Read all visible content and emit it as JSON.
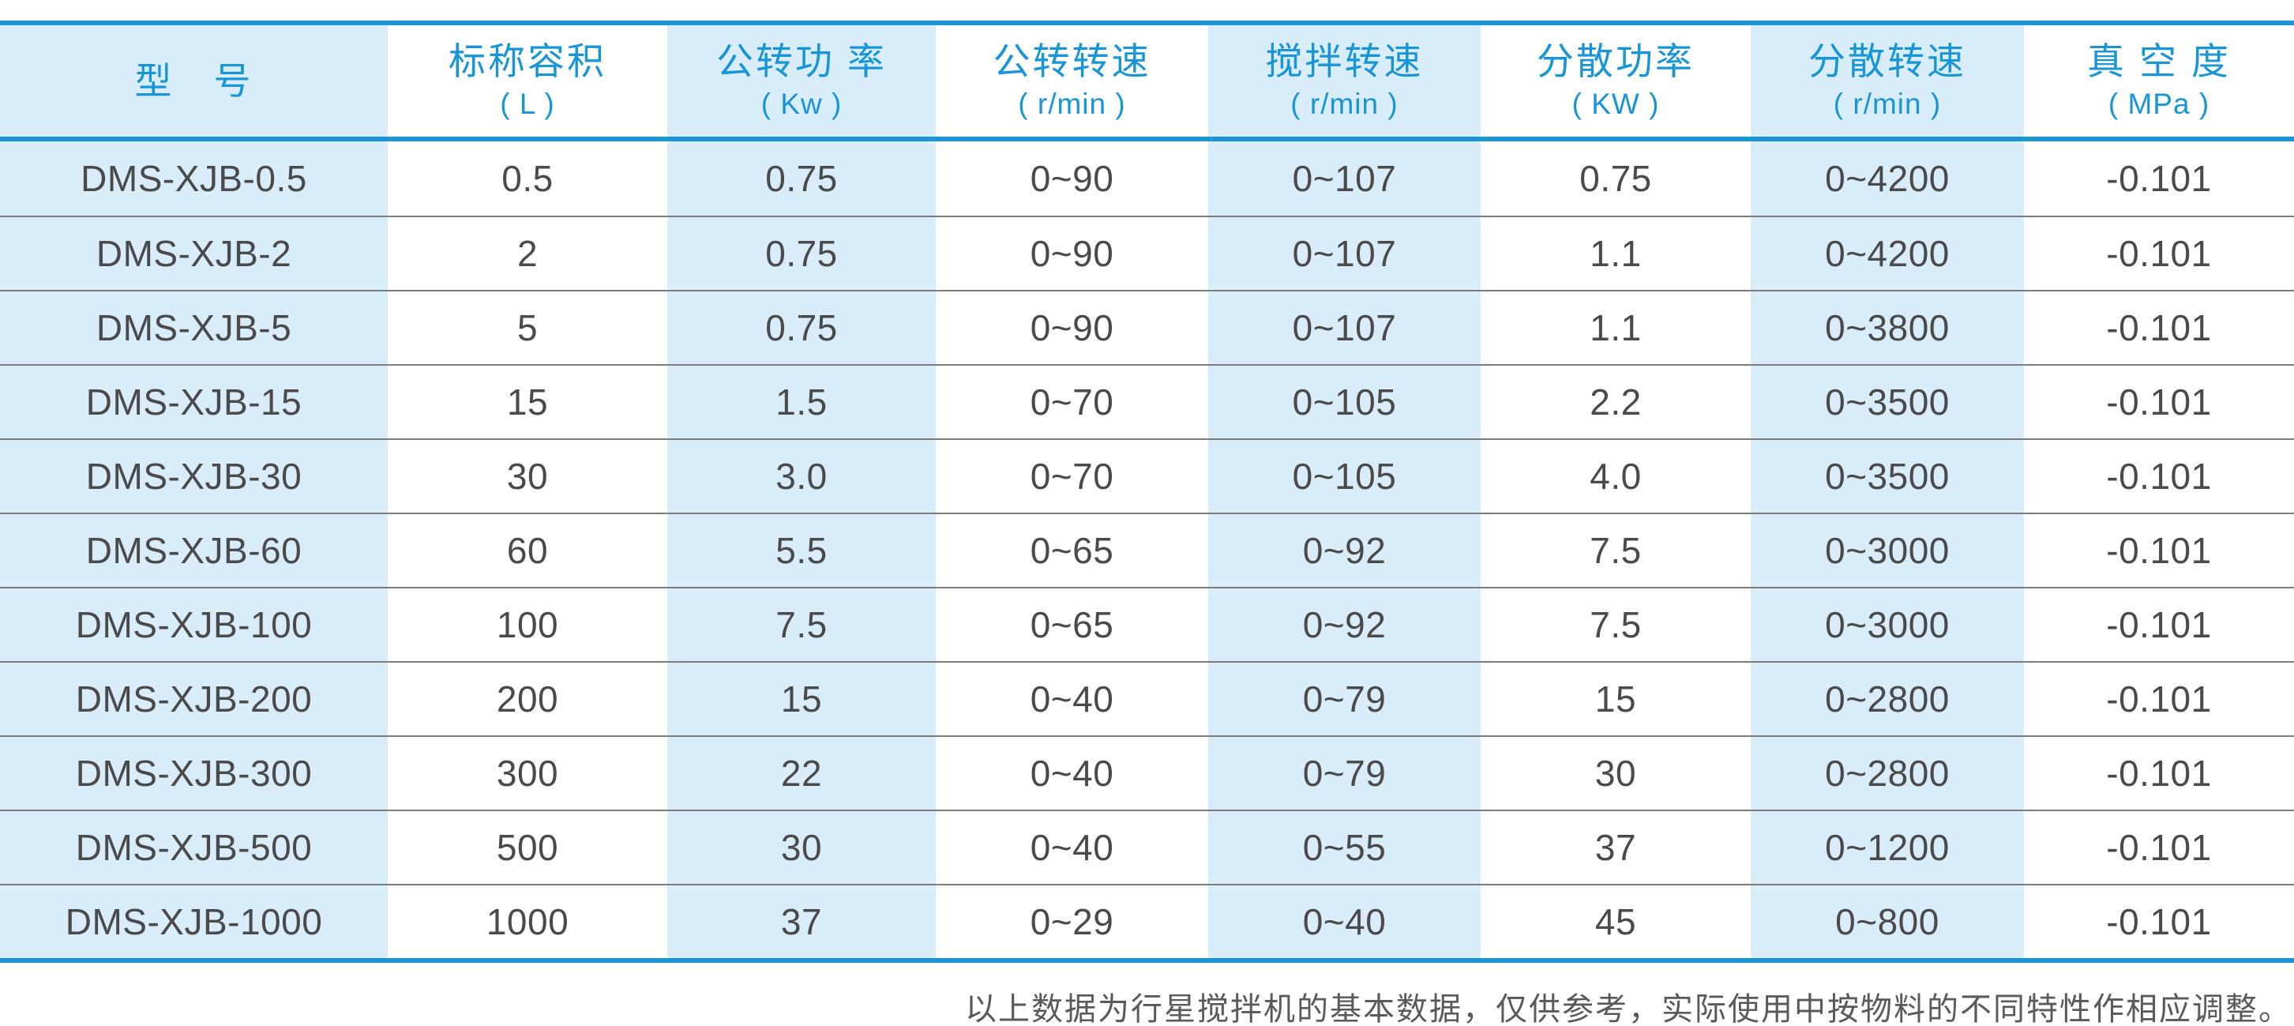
{
  "colors": {
    "accent_blue": "#1795d6",
    "band_blue": "#d9ecfa",
    "text_dark": "#4a4a4a",
    "row_rule_gray": "#7c7c7c",
    "footnote_gray": "#5a5a5a"
  },
  "table": {
    "columns": [
      {
        "title": "型　号",
        "unit": ""
      },
      {
        "title": "标称容积",
        "unit": "( L )"
      },
      {
        "title": "公转功 率",
        "unit": "( Kw )"
      },
      {
        "title": "公转转速",
        "unit": "( r/min )"
      },
      {
        "title": "搅拌转速",
        "unit": "( r/min )"
      },
      {
        "title": "分散功率",
        "unit": "( KW )"
      },
      {
        "title": "分散转速",
        "unit": "( r/min )"
      },
      {
        "title": "真 空 度",
        "unit": "( MPa )"
      }
    ],
    "rows": [
      [
        "DMS-XJB-0.5",
        "0.5",
        "0.75",
        "0~90",
        "0~107",
        "0.75",
        "0~4200",
        "-0.101"
      ],
      [
        "DMS-XJB-2",
        "2",
        "0.75",
        "0~90",
        "0~107",
        "1.1",
        "0~4200",
        "-0.101"
      ],
      [
        "DMS-XJB-5",
        "5",
        "0.75",
        "0~90",
        "0~107",
        "1.1",
        "0~3800",
        "-0.101"
      ],
      [
        "DMS-XJB-15",
        "15",
        "1.5",
        "0~70",
        "0~105",
        "2.2",
        "0~3500",
        "-0.101"
      ],
      [
        "DMS-XJB-30",
        "30",
        "3.0",
        "0~70",
        "0~105",
        "4.0",
        "0~3500",
        "-0.101"
      ],
      [
        "DMS-XJB-60",
        "60",
        "5.5",
        "0~65",
        "0~92",
        "7.5",
        "0~3000",
        "-0.101"
      ],
      [
        "DMS-XJB-100",
        "100",
        "7.5",
        "0~65",
        "0~92",
        "7.5",
        "0~3000",
        "-0.101"
      ],
      [
        "DMS-XJB-200",
        "200",
        "15",
        "0~40",
        "0~79",
        "15",
        "0~2800",
        "-0.101"
      ],
      [
        "DMS-XJB-300",
        "300",
        "22",
        "0~40",
        "0~79",
        "30",
        "0~2800",
        "-0.101"
      ],
      [
        "DMS-XJB-500",
        "500",
        "30",
        "0~40",
        "0~55",
        "37",
        "0~1200",
        "-0.101"
      ],
      [
        "DMS-XJB-1000",
        "1000",
        "37",
        "0~29",
        "0~40",
        "45",
        "0~800",
        "-0.101"
      ]
    ]
  },
  "footnote": "以上数据为行星搅拌机的基本数据，仅供参考，实际使用中按物料的不同特性作相应调整。"
}
